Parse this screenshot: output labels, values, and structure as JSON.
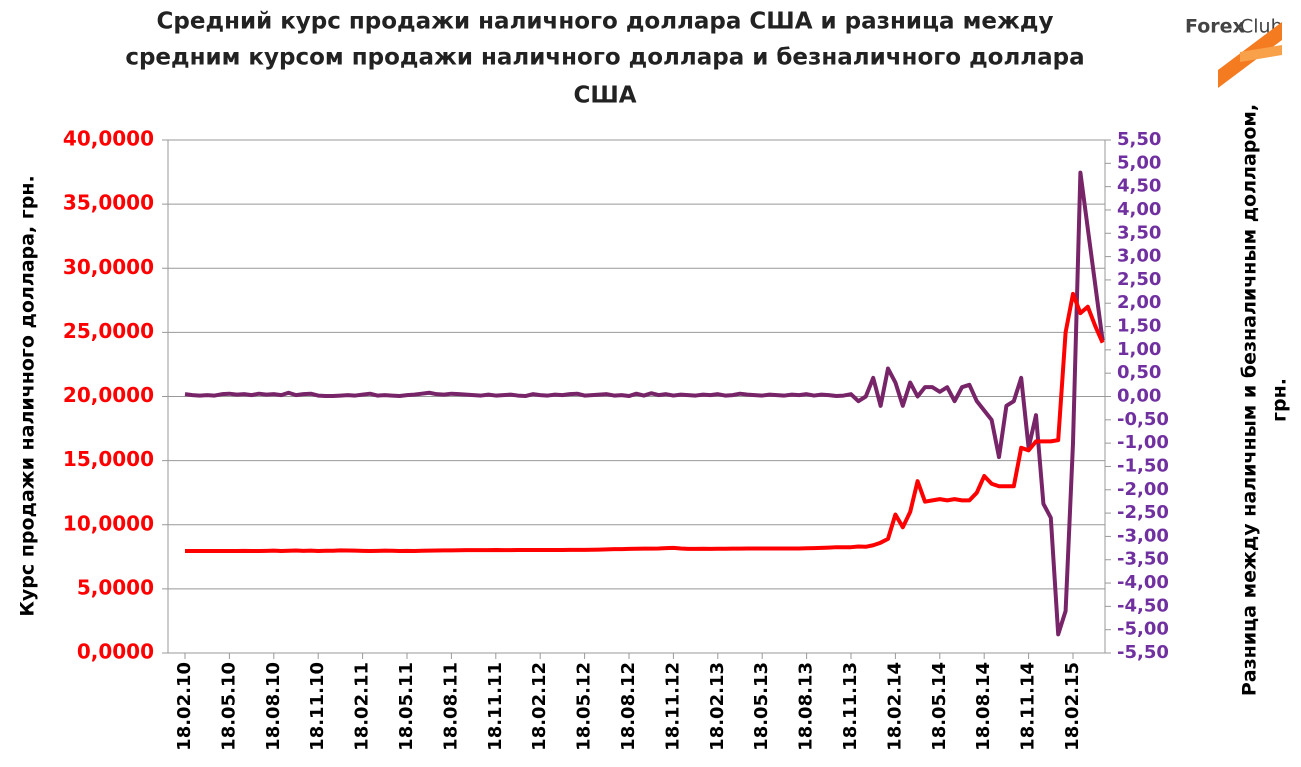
{
  "chart_data": {
    "type": "line",
    "title": [
      "Средний курс продажи  наличного доллара США и разница между",
      "средним курсом продажи  наличного доллара и безналичного доллара",
      "США"
    ],
    "logo": [
      "Forex",
      "Club"
    ],
    "y_label": "Курс продажи наличного доллара, грн.",
    "y2_label": [
      "Разница между наличным и безналичным долларом,",
      "грн."
    ],
    "categories": [
      "18.02.10",
      null,
      null,
      null,
      null,
      null,
      "18.05.10",
      null,
      null,
      null,
      null,
      null,
      "18.08.10",
      null,
      null,
      null,
      null,
      null,
      "18.11.10",
      null,
      null,
      null,
      null,
      null,
      "18.02.11",
      null,
      null,
      null,
      null,
      null,
      "18.05.11",
      null,
      null,
      null,
      null,
      null,
      "18.08.11",
      null,
      null,
      null,
      null,
      null,
      "18.11.11",
      null,
      null,
      null,
      null,
      null,
      "18.02.12",
      null,
      null,
      null,
      null,
      null,
      "18.05.12",
      null,
      null,
      null,
      null,
      null,
      "18.08.12",
      null,
      null,
      null,
      null,
      null,
      "18.11.12",
      null,
      null,
      null,
      null,
      null,
      "18.02.13",
      null,
      null,
      null,
      null,
      null,
      "18.05.13",
      null,
      null,
      null,
      null,
      null,
      "18.08.13",
      null,
      null,
      null,
      null,
      null,
      "18.11.13",
      null,
      null,
      null,
      null,
      null,
      "18.02.14",
      null,
      null,
      null,
      null,
      null,
      "18.05.14",
      null,
      null,
      null,
      null,
      null,
      "18.08.14",
      null,
      null,
      null,
      null,
      null,
      "18.11.14",
      null,
      null,
      null,
      null,
      null,
      "18.02.15",
      null,
      null,
      null,
      null
    ],
    "series": [
      {
        "color": "#ff0000",
        "axis": "y",
        "values": [
          7.95,
          7.95,
          7.95,
          7.95,
          7.95,
          7.95,
          7.95,
          7.95,
          7.96,
          7.95,
          7.95,
          7.96,
          7.98,
          7.95,
          7.97,
          7.99,
          7.96,
          7.98,
          7.95,
          7.97,
          7.97,
          8.0,
          7.99,
          7.98,
          7.96,
          7.95,
          7.96,
          7.98,
          7.97,
          7.95,
          7.96,
          7.95,
          7.97,
          7.98,
          7.99,
          8.0,
          8.0,
          8.01,
          8.02,
          8.02,
          8.02,
          8.02,
          8.03,
          8.02,
          8.02,
          8.03,
          8.03,
          8.03,
          8.03,
          8.03,
          8.03,
          8.03,
          8.04,
          8.04,
          8.04,
          8.05,
          8.06,
          8.08,
          8.1,
          8.1,
          8.12,
          8.13,
          8.14,
          8.14,
          8.15,
          8.18,
          8.2,
          8.15,
          8.12,
          8.12,
          8.13,
          8.12,
          8.13,
          8.13,
          8.14,
          8.14,
          8.15,
          8.15,
          8.15,
          8.15,
          8.15,
          8.15,
          8.15,
          8.15,
          8.17,
          8.18,
          8.2,
          8.22,
          8.25,
          8.25,
          8.25,
          8.3,
          8.28,
          8.4,
          8.6,
          8.9,
          10.8,
          9.8,
          11.0,
          13.4,
          11.8,
          11.9,
          12.0,
          11.9,
          12.0,
          11.9,
          11.9,
          12.5,
          13.8,
          13.2,
          13.0,
          13.0,
          13.0,
          16.0,
          15.8,
          16.5,
          16.5,
          16.5,
          16.6,
          25.0,
          28.0,
          26.5,
          27.0,
          25.5,
          24.2
        ]
      },
      {
        "color": "#782468",
        "axis": "y2",
        "values": [
          0.05,
          0.03,
          0.02,
          0.03,
          0.02,
          0.05,
          0.06,
          0.04,
          0.05,
          0.03,
          0.06,
          0.04,
          0.05,
          0.03,
          0.08,
          0.03,
          0.05,
          0.06,
          0.02,
          0.01,
          0.01,
          0.02,
          0.03,
          0.02,
          0.04,
          0.06,
          0.02,
          0.03,
          0.02,
          0.01,
          0.03,
          0.04,
          0.06,
          0.08,
          0.05,
          0.04,
          0.06,
          0.05,
          0.04,
          0.03,
          0.02,
          0.04,
          0.02,
          0.03,
          0.04,
          0.02,
          0.01,
          0.05,
          0.03,
          0.02,
          0.04,
          0.03,
          0.05,
          0.06,
          0.02,
          0.03,
          0.04,
          0.05,
          0.02,
          0.03,
          0.01,
          0.06,
          0.02,
          0.07,
          0.03,
          0.05,
          0.02,
          0.04,
          0.03,
          0.02,
          0.04,
          0.03,
          0.05,
          0.02,
          0.03,
          0.06,
          0.04,
          0.03,
          0.02,
          0.04,
          0.03,
          0.02,
          0.04,
          0.03,
          0.05,
          0.02,
          0.04,
          0.03,
          0.01,
          0.02,
          0.05,
          -0.1,
          0.0,
          0.4,
          -0.2,
          0.6,
          0.3,
          -0.2,
          0.3,
          0.0,
          0.2,
          0.2,
          0.1,
          0.2,
          -0.1,
          0.2,
          0.25,
          -0.1,
          -0.3,
          -0.5,
          -1.3,
          -0.2,
          -0.1,
          0.4,
          -1.1,
          -0.4,
          -2.3,
          -2.6,
          -5.1,
          -4.6,
          -1.0,
          4.8,
          3.6,
          2.4,
          1.2
        ]
      }
    ],
    "ylim": [
      0,
      40
    ],
    "yticks": [
      {
        "value": 0,
        "label": "0,0000"
      },
      {
        "value": 5,
        "label": "5,0000"
      },
      {
        "value": 10,
        "label": "10,0000"
      },
      {
        "value": 15,
        "label": "15,0000"
      },
      {
        "value": 20,
        "label": "20,0000"
      },
      {
        "value": 25,
        "label": "25,0000"
      },
      {
        "value": 30,
        "label": "30,0000"
      },
      {
        "value": 35,
        "label": "35,0000"
      },
      {
        "value": 40,
        "label": "40,0000"
      }
    ],
    "y2lim": [
      -5.5,
      5.5
    ],
    "y2ticks": [
      {
        "value": -5.5,
        "label": "-5,50"
      },
      {
        "value": -5,
        "label": "-5,00"
      },
      {
        "value": -4.5,
        "label": "-4,50"
      },
      {
        "value": -4,
        "label": "-4,00"
      },
      {
        "value": -3.5,
        "label": "-3,50"
      },
      {
        "value": -3,
        "label": "-3,00"
      },
      {
        "value": -2.5,
        "label": "-2,50"
      },
      {
        "value": -2,
        "label": "-2,00"
      },
      {
        "value": -1.5,
        "label": "-1,50"
      },
      {
        "value": -1,
        "label": "-1,00"
      },
      {
        "value": -0.5,
        "label": "-0,50"
      },
      {
        "value": 0,
        "label": "0,00"
      },
      {
        "value": 0.5,
        "label": "0,50"
      },
      {
        "value": 1,
        "label": "1,00"
      },
      {
        "value": 1.5,
        "label": "1,50"
      },
      {
        "value": 2,
        "label": "2,00"
      },
      {
        "value": 2.5,
        "label": "2,50"
      },
      {
        "value": 3,
        "label": "3,00"
      },
      {
        "value": 3.5,
        "label": "3,50"
      },
      {
        "value": 4,
        "label": "4,00"
      },
      {
        "value": 4.5,
        "label": "4,50"
      },
      {
        "value": 5,
        "label": "5,00"
      },
      {
        "value": 5.5,
        "label": "5,50"
      }
    ],
    "y_color": "#ff0000",
    "y2_color": "#7030a0",
    "grid": true
  }
}
